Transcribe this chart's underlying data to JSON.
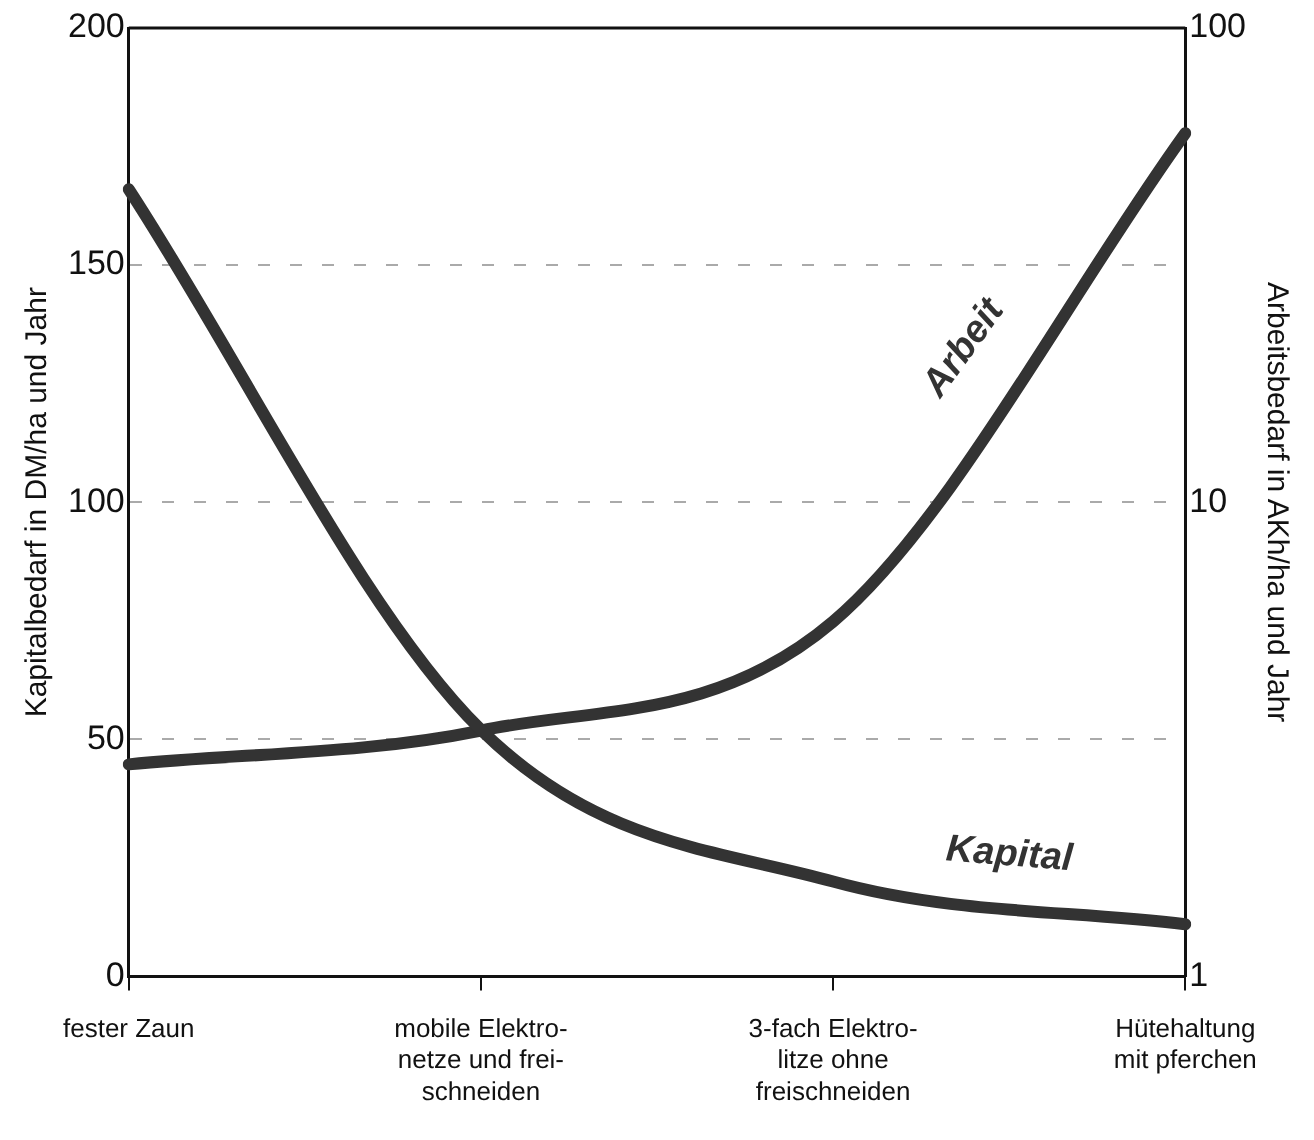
{
  "chart_data": {
    "type": "line",
    "ylabel": "Kapitalbedarf in DM/ha und Jahr",
    "y2label": "Arbeitsbedarf in AKh/ha und Jahr",
    "categories": [
      "fester Zaun",
      "mobile Elektro-\nnetze und frei-\nschneiden",
      "3-fach Elektro-\nlitze ohne\nfreischneiden",
      "Hütehaltung\nmit pferchen"
    ],
    "ylim": [
      0,
      200
    ],
    "yticks": [
      0,
      50,
      100,
      150,
      200
    ],
    "y2lim": [
      1,
      100
    ],
    "y2ticks": [
      1,
      10,
      100
    ],
    "log": "y2",
    "grid": "y",
    "legend": false,
    "marker": "none",
    "line_style": "solid",
    "series": [
      {
        "name": "Kapital",
        "color": "#333333",
        "values": [
          166,
          52,
          20,
          11
        ]
      },
      {
        "name": "Arbeit",
        "color": "#333333",
        "axis": "y2",
        "values": [
          2.8,
          3.3,
          5.6,
          60
        ]
      }
    ]
  }
}
